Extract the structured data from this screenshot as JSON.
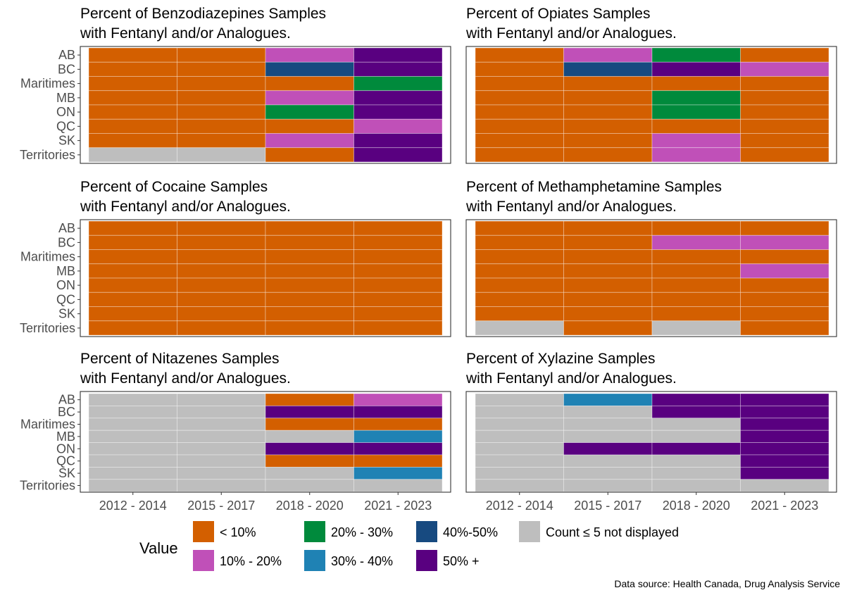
{
  "colors": {
    "lt10": "#d35f00",
    "p10_20": "#c050b8",
    "p20_30": "#008a3c",
    "p30_40": "#1f82b4",
    "p40_50": "#174a80",
    "p50plus": "#590080",
    "na": "#bebebe"
  },
  "chart_data": {
    "type": "heatmap",
    "regions": [
      "AB",
      "BC",
      "Maritimes",
      "MB",
      "ON",
      "QC",
      "SK",
      "Territories"
    ],
    "periods": [
      "2012 - 2014",
      "2015 - 2017",
      "2018 - 2020",
      "2021 - 2023"
    ],
    "legend": {
      "title": "Value",
      "items": [
        {
          "key": "lt10",
          "label": "< 10%"
        },
        {
          "key": "p10_20",
          "label": "10% - 20%"
        },
        {
          "key": "p20_30",
          "label": "20% - 30%"
        },
        {
          "key": "p30_40",
          "label": "30% - 40%"
        },
        {
          "key": "p40_50",
          "label": "40%-50%"
        },
        {
          "key": "p50plus",
          "label": "50% +"
        },
        {
          "key": "na",
          "label": "Count ≤ 5 not displayed"
        }
      ]
    },
    "panels": [
      {
        "title_line1": "Percent of Benzodiazepines Samples",
        "title_line2": "with Fentanyl and/or Analogues.",
        "values": [
          [
            "lt10",
            "lt10",
            "p10_20",
            "p50plus"
          ],
          [
            "lt10",
            "lt10",
            "p40_50",
            "p50plus"
          ],
          [
            "lt10",
            "lt10",
            "lt10",
            "p20_30"
          ],
          [
            "lt10",
            "lt10",
            "p10_20",
            "p50plus"
          ],
          [
            "lt10",
            "lt10",
            "p20_30",
            "p50plus"
          ],
          [
            "lt10",
            "lt10",
            "lt10",
            "p10_20"
          ],
          [
            "lt10",
            "lt10",
            "p10_20",
            "p50plus"
          ],
          [
            "na",
            "na",
            "lt10",
            "p50plus"
          ]
        ]
      },
      {
        "title_line1": "Percent of Opiates Samples",
        "title_line2": "with Fentanyl and/or Analogues.",
        "values": [
          [
            "lt10",
            "p10_20",
            "p20_30",
            "lt10"
          ],
          [
            "lt10",
            "p40_50",
            "p50plus",
            "p10_20"
          ],
          [
            "lt10",
            "lt10",
            "lt10",
            "lt10"
          ],
          [
            "lt10",
            "lt10",
            "p20_30",
            "lt10"
          ],
          [
            "lt10",
            "lt10",
            "p20_30",
            "lt10"
          ],
          [
            "lt10",
            "lt10",
            "lt10",
            "lt10"
          ],
          [
            "lt10",
            "lt10",
            "p10_20",
            "lt10"
          ],
          [
            "lt10",
            "lt10",
            "p10_20",
            "lt10"
          ]
        ]
      },
      {
        "title_line1": "Percent of Cocaine Samples",
        "title_line2": "with Fentanyl and/or Analogues.",
        "values": [
          [
            "lt10",
            "lt10",
            "lt10",
            "lt10"
          ],
          [
            "lt10",
            "lt10",
            "lt10",
            "lt10"
          ],
          [
            "lt10",
            "lt10",
            "lt10",
            "lt10"
          ],
          [
            "lt10",
            "lt10",
            "lt10",
            "lt10"
          ],
          [
            "lt10",
            "lt10",
            "lt10",
            "lt10"
          ],
          [
            "lt10",
            "lt10",
            "lt10",
            "lt10"
          ],
          [
            "lt10",
            "lt10",
            "lt10",
            "lt10"
          ],
          [
            "lt10",
            "lt10",
            "lt10",
            "lt10"
          ]
        ]
      },
      {
        "title_line1": "Percent of Methamphetamine Samples",
        "title_line2": "with Fentanyl and/or Analogues.",
        "values": [
          [
            "lt10",
            "lt10",
            "lt10",
            "lt10"
          ],
          [
            "lt10",
            "lt10",
            "p10_20",
            "p10_20"
          ],
          [
            "lt10",
            "lt10",
            "lt10",
            "lt10"
          ],
          [
            "lt10",
            "lt10",
            "lt10",
            "p10_20"
          ],
          [
            "lt10",
            "lt10",
            "lt10",
            "lt10"
          ],
          [
            "lt10",
            "lt10",
            "lt10",
            "lt10"
          ],
          [
            "lt10",
            "lt10",
            "lt10",
            "lt10"
          ],
          [
            "na",
            "lt10",
            "na",
            "lt10"
          ]
        ]
      },
      {
        "title_line1": "Percent of Nitazenes Samples",
        "title_line2": "with Fentanyl and/or Analogues.",
        "values": [
          [
            "na",
            "na",
            "lt10",
            "p10_20"
          ],
          [
            "na",
            "na",
            "p50plus",
            "p50plus"
          ],
          [
            "na",
            "na",
            "lt10",
            "lt10"
          ],
          [
            "na",
            "na",
            "na",
            "p30_40"
          ],
          [
            "na",
            "na",
            "p50plus",
            "p50plus"
          ],
          [
            "na",
            "na",
            "lt10",
            "lt10"
          ],
          [
            "na",
            "na",
            "na",
            "p30_40"
          ],
          [
            "na",
            "na",
            "na",
            "na"
          ]
        ]
      },
      {
        "title_line1": "Percent of Xylazine Samples",
        "title_line2": "with Fentanyl and/or Analogues.",
        "values": [
          [
            "na",
            "p30_40",
            "p50plus",
            "p50plus"
          ],
          [
            "na",
            "na",
            "p50plus",
            "p50plus"
          ],
          [
            "na",
            "na",
            "na",
            "p50plus"
          ],
          [
            "na",
            "na",
            "na",
            "p50plus"
          ],
          [
            "na",
            "p50plus",
            "p50plus",
            "p50plus"
          ],
          [
            "na",
            "na",
            "na",
            "p50plus"
          ],
          [
            "na",
            "na",
            "na",
            "p50plus"
          ],
          [
            "na",
            "na",
            "na",
            "na"
          ]
        ]
      }
    ]
  },
  "source": "Data source: Health Canada, Drug Analysis Service"
}
